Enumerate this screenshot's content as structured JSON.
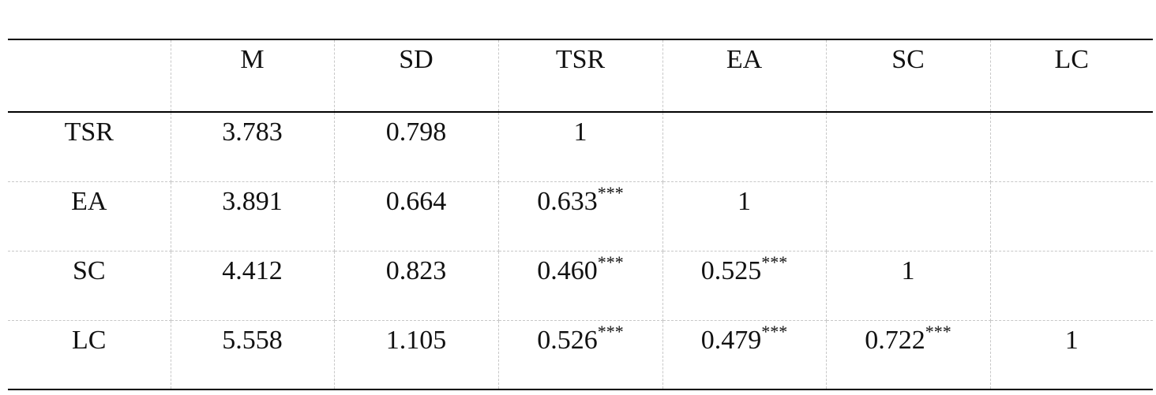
{
  "table": {
    "header": [
      "M",
      "SD",
      "TSR",
      "EA",
      "SC",
      "LC"
    ],
    "rows": [
      {
        "label": "TSR",
        "cells": [
          {
            "value": "3.783"
          },
          {
            "value": "0.798"
          },
          {
            "value": "1"
          }
        ]
      },
      {
        "label": "EA",
        "cells": [
          {
            "value": "3.891"
          },
          {
            "value": "0.664"
          },
          {
            "value": "0.633",
            "sup": "***"
          },
          {
            "value": "1"
          }
        ]
      },
      {
        "label": "SC",
        "cells": [
          {
            "value": "4.412"
          },
          {
            "value": "0.823"
          },
          {
            "value": "0.460",
            "sup": "***"
          },
          {
            "value": "0.525",
            "sup": "***"
          },
          {
            "value": "1"
          }
        ]
      },
      {
        "label": "LC",
        "cells": [
          {
            "value": "5.558"
          },
          {
            "value": "1.105"
          },
          {
            "value": "0.526",
            "sup": "***"
          },
          {
            "value": "0.479",
            "sup": "***"
          },
          {
            "value": "0.722",
            "sup": "***"
          },
          {
            "value": "1"
          }
        ]
      }
    ]
  }
}
